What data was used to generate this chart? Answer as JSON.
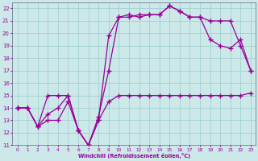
{
  "xlabel": "Windchill (Refroidissement éolien,°C)",
  "bg_color": "#cce8e8",
  "grid_color": "#99cccc",
  "line_color": "#990099",
  "xlim": [
    -0.5,
    23.5
  ],
  "ylim": [
    11,
    22.5
  ],
  "xticks": [
    0,
    1,
    2,
    3,
    4,
    5,
    6,
    7,
    8,
    9,
    10,
    11,
    12,
    13,
    14,
    15,
    16,
    17,
    18,
    19,
    20,
    21,
    22,
    23
  ],
  "yticks": [
    11,
    12,
    13,
    14,
    15,
    16,
    17,
    18,
    19,
    20,
    21,
    22
  ],
  "line1_x": [
    0,
    1,
    2,
    3,
    4,
    5,
    6,
    7,
    8,
    9,
    10,
    11,
    12,
    13,
    14,
    15,
    16,
    17,
    18,
    19,
    20,
    21,
    22,
    23
  ],
  "line1_y": [
    14.0,
    14.0,
    12.5,
    15.0,
    15.0,
    15.0,
    12.2,
    11.0,
    13.3,
    17.0,
    21.3,
    21.5,
    21.3,
    21.5,
    21.5,
    22.2,
    21.8,
    21.3,
    21.3,
    21.0,
    21.0,
    21.0,
    19.0,
    17.0
  ],
  "line2_x": [
    0,
    1,
    2,
    3,
    4,
    5,
    6,
    7,
    8,
    9,
    10,
    11,
    12,
    13,
    14,
    15,
    16,
    17,
    18,
    19,
    20,
    21,
    22,
    23
  ],
  "line2_y": [
    14.0,
    14.0,
    12.5,
    13.0,
    13.0,
    14.5,
    12.2,
    11.0,
    13.0,
    14.5,
    15.0,
    15.0,
    15.0,
    15.0,
    15.0,
    15.0,
    15.0,
    15.0,
    15.0,
    15.0,
    15.0,
    15.0,
    15.0,
    15.2
  ],
  "line3_x": [
    0,
    1,
    2,
    3,
    4,
    5,
    6,
    7,
    8,
    9,
    10,
    11,
    12,
    13,
    14,
    15,
    16,
    17,
    18,
    19,
    20,
    21,
    22,
    23
  ],
  "line3_y": [
    14.0,
    14.0,
    12.5,
    13.5,
    14.0,
    15.0,
    12.2,
    11.0,
    13.0,
    19.8,
    21.3,
    21.3,
    21.5,
    21.5,
    21.5,
    22.2,
    21.8,
    21.3,
    21.3,
    19.5,
    19.0,
    18.8,
    19.5,
    17.0
  ]
}
